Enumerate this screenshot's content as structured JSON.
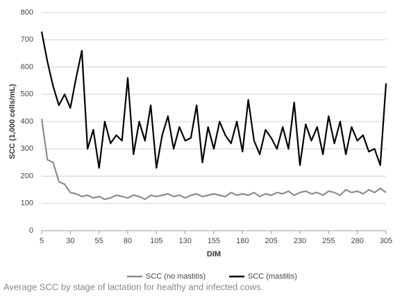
{
  "chart_data": {
    "type": "line",
    "y_label": "SCC (1,000 cells/mL)",
    "x_label": "DIM",
    "caption": "Average SCC by stage of lactation for healthy and infected cows.",
    "x": [
      5,
      10,
      15,
      20,
      25,
      30,
      35,
      40,
      45,
      50,
      55,
      60,
      65,
      70,
      75,
      80,
      85,
      90,
      95,
      100,
      105,
      110,
      115,
      120,
      125,
      130,
      135,
      140,
      145,
      150,
      155,
      160,
      165,
      170,
      175,
      180,
      185,
      190,
      195,
      200,
      205,
      210,
      215,
      220,
      225,
      230,
      235,
      240,
      245,
      250,
      255,
      260,
      265,
      270,
      275,
      280,
      285,
      290,
      295,
      300,
      305
    ],
    "series": [
      {
        "name": "SCC (no mastitis)",
        "color": "#8c8c8c",
        "values": [
          410,
          260,
          250,
          180,
          170,
          140,
          135,
          125,
          130,
          120,
          125,
          115,
          120,
          130,
          125,
          120,
          130,
          125,
          115,
          130,
          125,
          130,
          135,
          125,
          130,
          120,
          130,
          135,
          125,
          130,
          135,
          130,
          125,
          140,
          130,
          135,
          130,
          140,
          125,
          135,
          130,
          140,
          135,
          145,
          130,
          140,
          145,
          135,
          140,
          130,
          145,
          140,
          130,
          150,
          140,
          145,
          135,
          150,
          140,
          155,
          140
        ]
      },
      {
        "name": "SCC (mastitis)",
        "color": "#000000",
        "values": [
          730,
          620,
          530,
          460,
          500,
          450,
          560,
          660,
          300,
          370,
          230,
          400,
          320,
          350,
          330,
          560,
          280,
          400,
          330,
          460,
          230,
          350,
          420,
          300,
          380,
          330,
          340,
          460,
          250,
          380,
          300,
          400,
          350,
          320,
          400,
          290,
          480,
          330,
          280,
          370,
          340,
          300,
          380,
          300,
          470,
          240,
          390,
          330,
          380,
          280,
          420,
          320,
          400,
          280,
          380,
          330,
          350,
          290,
          300,
          240,
          540
        ]
      }
    ],
    "xlim": [
      5,
      305
    ],
    "xticks": [
      5,
      30,
      55,
      80,
      105,
      130,
      155,
      180,
      205,
      230,
      255,
      280,
      305
    ],
    "ylim": [
      0,
      800
    ],
    "yticks": [
      0,
      100,
      200,
      300,
      400,
      500,
      600,
      700,
      800
    ],
    "grid": true,
    "legend": "bottom"
  }
}
